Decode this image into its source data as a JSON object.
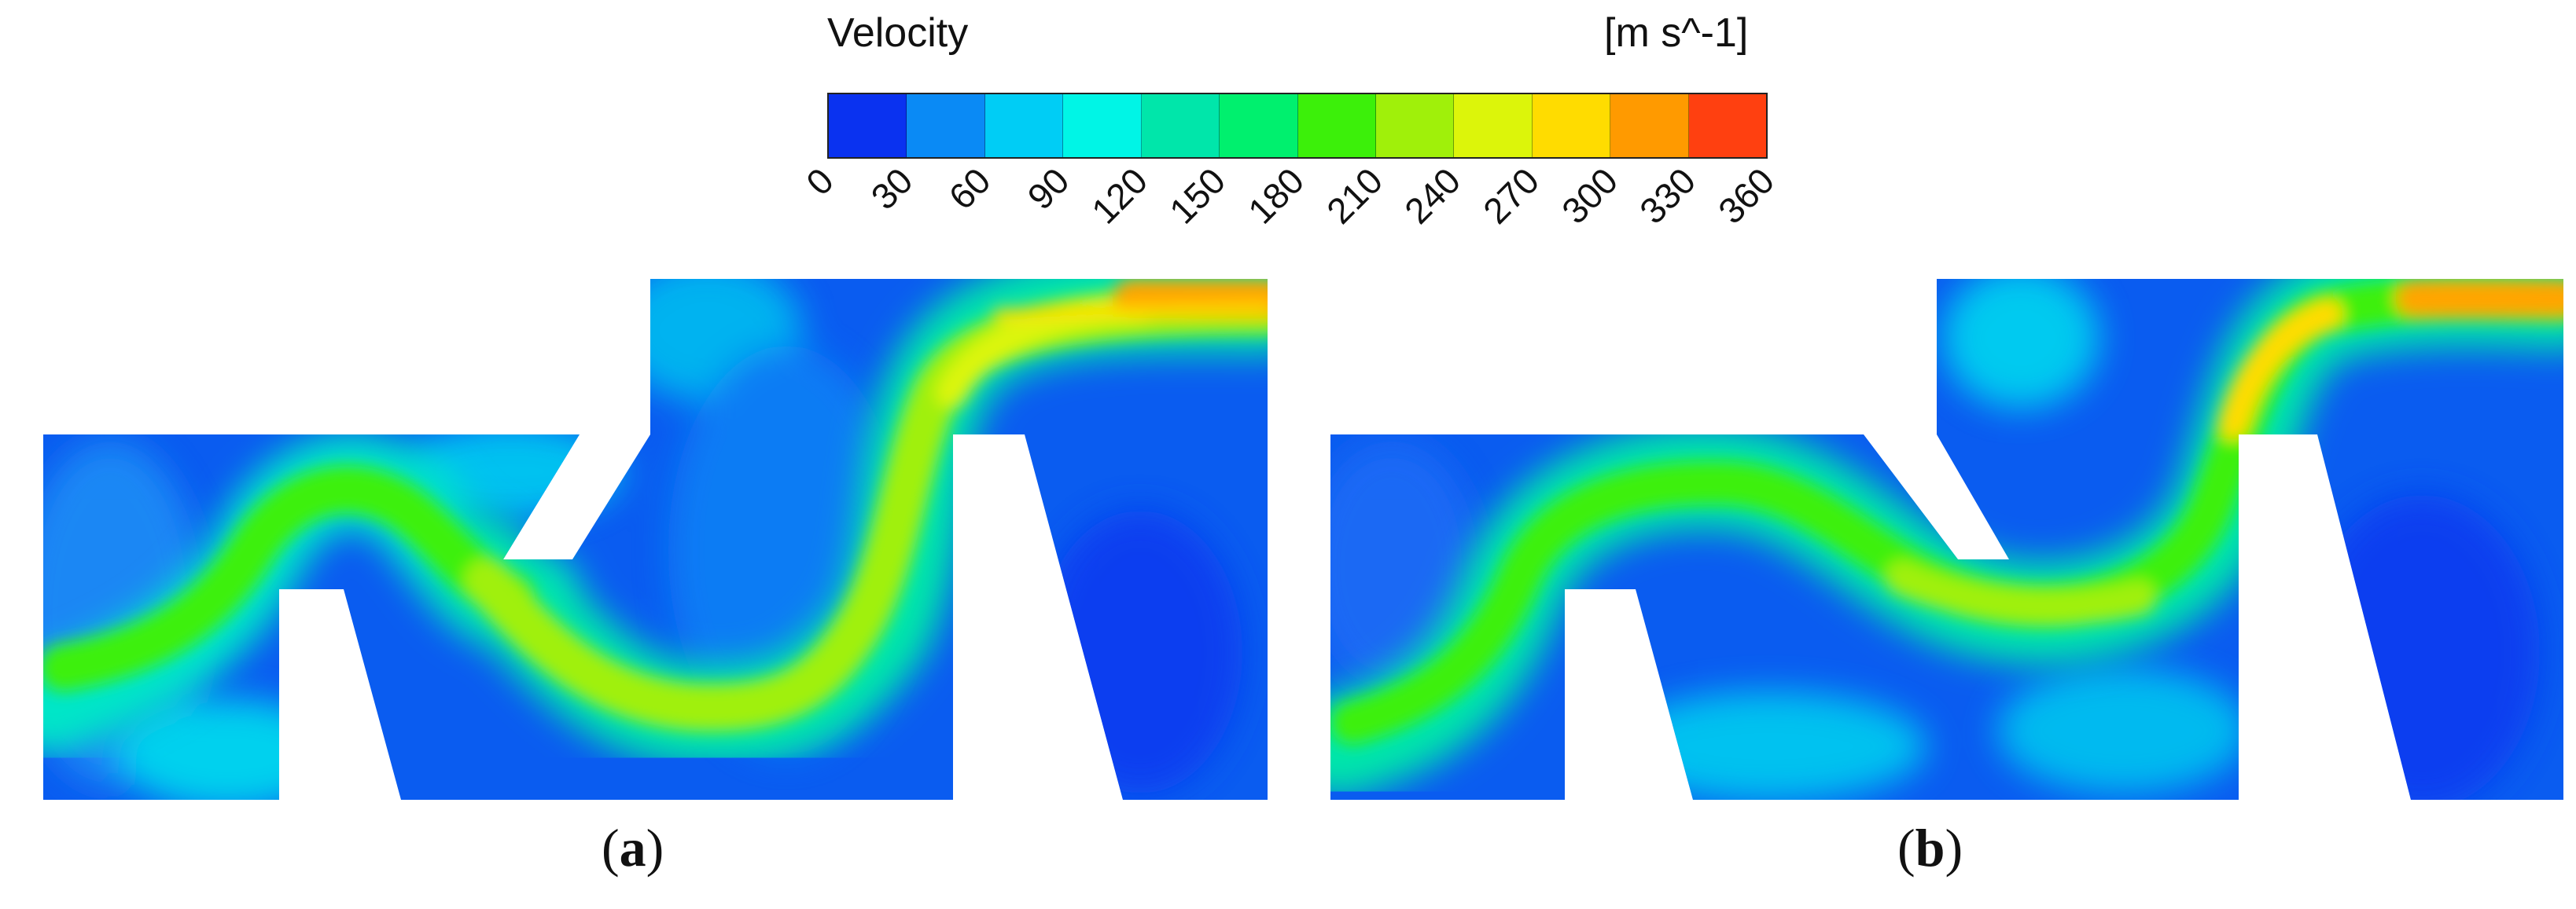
{
  "legend": {
    "title": "Velocity",
    "unit": "[m s^-1]",
    "ticks": [
      "0",
      "30",
      "60",
      "90",
      "120",
      "150",
      "180",
      "210",
      "240",
      "270",
      "300",
      "330",
      "360"
    ],
    "colors": [
      "#0a32f0",
      "#0a8af5",
      "#00cdf5",
      "#00f5e6",
      "#00e6aa",
      "#00f06e",
      "#3cf00a",
      "#a0f00a",
      "#dcf50a",
      "#ffdc00",
      "#ff9a00",
      "#ff4010"
    ]
  },
  "panels": [
    {
      "label_open": "(",
      "label_letter": "a",
      "label_close": ")"
    },
    {
      "label_open": "(",
      "label_letter": "b",
      "label_close": ")"
    }
  ]
}
